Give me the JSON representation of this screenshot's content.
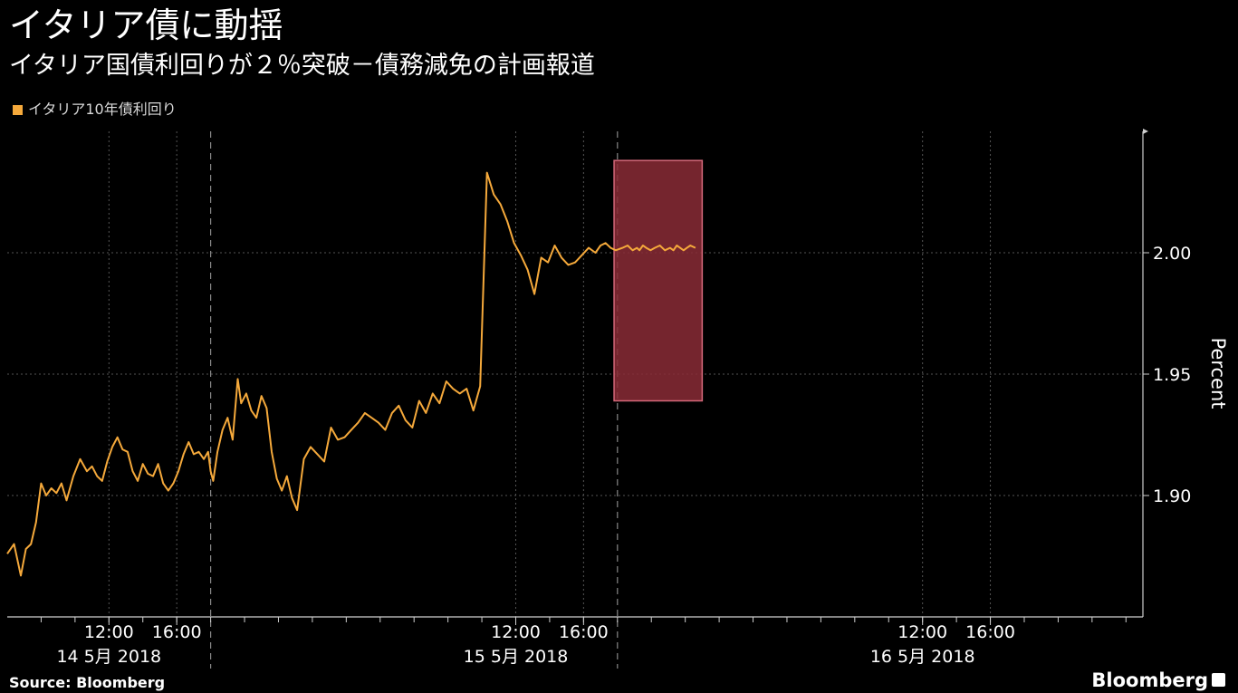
{
  "header": {
    "title": "イタリア債に動揺",
    "subtitle": "イタリア国債利回りが２％突破－債務減免の計画報道"
  },
  "footer": {
    "source": "Source: Bloomberg",
    "brand": "Bloomberg"
  },
  "colors": {
    "background": "#000000",
    "line": "#f5a93b",
    "highlight_fill": "#8a2c36",
    "highlight_stroke": "#d4687a",
    "grid": "#555555"
  },
  "chart_data": {
    "type": "line",
    "title": "",
    "xlabel": "",
    "ylabel": "Percent",
    "ylim": [
      1.85,
      2.05
    ],
    "y_axis_position": "right",
    "y_ticks": [
      "1.90",
      "1.95",
      "2.00"
    ],
    "grid": true,
    "legend": "top-left",
    "x_axis": {
      "start_hour": 6,
      "end_hour": 73,
      "time_ticks": [
        {
          "hour": 12,
          "label": "12:00"
        },
        {
          "hour": 16,
          "label": "16:00"
        },
        {
          "hour": 36,
          "label": "12:00"
        },
        {
          "hour": 40,
          "label": "16:00"
        },
        {
          "hour": 60,
          "label": "12:00"
        },
        {
          "hour": 64,
          "label": "16:00"
        }
      ],
      "day_labels": [
        {
          "hour": 12,
          "label": "14 5月 2018"
        },
        {
          "hour": 36,
          "label": "15 5月 2018"
        },
        {
          "hour": 60,
          "label": "16 5月 2018"
        }
      ],
      "day_separators": [
        18,
        42
      ]
    },
    "highlight": {
      "x_start_hour": 41.8,
      "x_end_hour": 47.0,
      "y_low": 1.939,
      "y_high": 2.038
    },
    "series": [
      {
        "name": "イタリア10年債利回り",
        "x": [
          6.0,
          6.4,
          6.8,
          7.1,
          7.4,
          7.7,
          8.0,
          8.3,
          8.6,
          8.9,
          9.2,
          9.5,
          9.9,
          10.3,
          10.7,
          11.0,
          11.3,
          11.6,
          11.9,
          12.2,
          12.5,
          12.8,
          13.1,
          13.4,
          13.7,
          14.0,
          14.3,
          14.6,
          14.9,
          15.2,
          15.5,
          15.8,
          16.1,
          16.4,
          16.7,
          17.0,
          17.3,
          17.6,
          17.85,
          18.0,
          18.15,
          18.4,
          18.7,
          19.0,
          19.3,
          19.6,
          19.8,
          20.1,
          20.4,
          20.7,
          21.0,
          21.3,
          21.6,
          21.9,
          22.2,
          22.5,
          22.8,
          23.1,
          23.5,
          23.9,
          24.3,
          24.7,
          25.1,
          25.5,
          25.9,
          26.3,
          26.7,
          27.1,
          27.5,
          27.9,
          28.3,
          28.7,
          29.1,
          29.5,
          29.9,
          30.3,
          30.7,
          31.1,
          31.5,
          31.9,
          32.3,
          32.7,
          33.1,
          33.5,
          33.9,
          34.3,
          34.7,
          35.1,
          35.5,
          35.9,
          36.3,
          36.7,
          37.1,
          37.5,
          37.9,
          38.3,
          38.7,
          39.1,
          39.5,
          39.9,
          40.3,
          40.7,
          41.0,
          41.3,
          41.6,
          41.9,
          42.3,
          42.6,
          42.9,
          43.15,
          43.3,
          43.5,
          43.7,
          43.95,
          44.2,
          44.5,
          44.8,
          45.1,
          45.3,
          45.5,
          45.7,
          45.9,
          46.1,
          46.3,
          46.6
        ],
        "values": [
          1.876,
          1.88,
          1.867,
          1.878,
          1.88,
          1.889,
          1.905,
          1.9,
          1.903,
          1.901,
          1.905,
          1.898,
          1.908,
          1.915,
          1.91,
          1.912,
          1.908,
          1.906,
          1.914,
          1.92,
          1.924,
          1.919,
          1.918,
          1.91,
          1.906,
          1.913,
          1.909,
          1.908,
          1.913,
          1.905,
          1.902,
          1.905,
          1.91,
          1.917,
          1.922,
          1.917,
          1.918,
          1.915,
          1.918,
          1.91,
          1.906,
          1.918,
          1.927,
          1.932,
          1.923,
          1.948,
          1.938,
          1.942,
          1.935,
          1.932,
          1.941,
          1.936,
          1.918,
          1.907,
          1.902,
          1.908,
          1.899,
          1.894,
          1.915,
          1.92,
          1.917,
          1.914,
          1.928,
          1.923,
          1.924,
          1.927,
          1.93,
          1.934,
          1.932,
          1.93,
          1.927,
          1.934,
          1.937,
          1.931,
          1.928,
          1.939,
          1.934,
          1.942,
          1.938,
          1.947,
          1.944,
          1.942,
          1.944,
          1.935,
          1.945,
          2.033,
          2.024,
          2.02,
          2.013,
          2.004,
          1.999,
          1.993,
          1.983,
          1.998,
          1.996,
          2.003,
          1.998,
          1.995,
          1.996,
          1.999,
          2.002,
          2.0,
          2.003,
          2.004,
          2.002,
          2.001,
          2.002,
          2.003,
          2.001,
          2.002,
          2.001,
          2.003,
          2.002,
          2.001,
          2.002,
          2.003,
          2.001,
          2.002,
          2.001,
          2.003,
          2.002,
          2.001,
          2.002,
          2.003,
          2.002
        ]
      }
    ]
  }
}
